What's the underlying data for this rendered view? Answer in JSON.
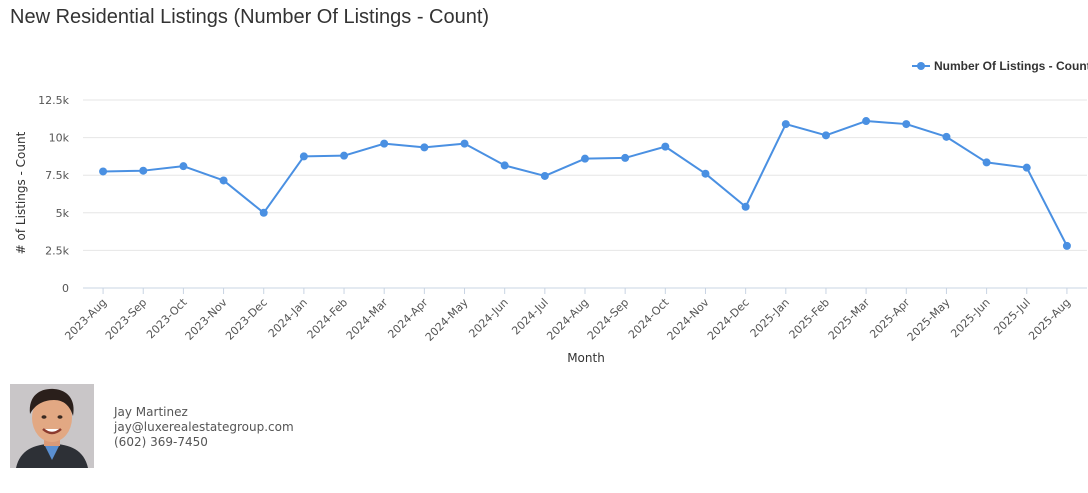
{
  "title": "New Residential Listings (Number Of Listings - Count)",
  "colors": {
    "series": "#4a90e2",
    "grid": "#e6e6e6",
    "axis": "#c8d4e3"
  },
  "chart_data": {
    "type": "line",
    "title": "New Residential Listings (Number Of Listings - Count)",
    "xlabel": "Month",
    "ylabel": "# of Listings - Count",
    "ylim": [
      0,
      12500
    ],
    "yticks": [
      0,
      2500,
      5000,
      7500,
      10000,
      12500
    ],
    "ytick_labels": [
      "0",
      "2.5k",
      "5k",
      "7.5k",
      "10k",
      "12.5k"
    ],
    "grid": true,
    "legend_position": "top-right",
    "categories": [
      "2023-Aug",
      "2023-Sep",
      "2023-Oct",
      "2023-Nov",
      "2023-Dec",
      "2024-Jan",
      "2024-Feb",
      "2024-Mar",
      "2024-Apr",
      "2024-May",
      "2024-Jun",
      "2024-Jul",
      "2024-Aug",
      "2024-Sep",
      "2024-Oct",
      "2024-Nov",
      "2024-Dec",
      "2025-Jan",
      "2025-Feb",
      "2025-Mar",
      "2025-Apr",
      "2025-May",
      "2025-Jun",
      "2025-Jul",
      "2025-Aug"
    ],
    "series": [
      {
        "name": "Number Of Listings - Count",
        "values": [
          7750,
          7800,
          8100,
          7150,
          5000,
          8750,
          8800,
          9600,
          9350,
          9600,
          8150,
          7450,
          8600,
          8650,
          9400,
          7600,
          5400,
          10900,
          10150,
          11100,
          10900,
          10050,
          8350,
          8000,
          2800
        ]
      }
    ]
  },
  "agent": {
    "name": "Jay Martinez",
    "email": "jay@luxerealestategroup.com",
    "phone": "(602) 369-7450"
  }
}
